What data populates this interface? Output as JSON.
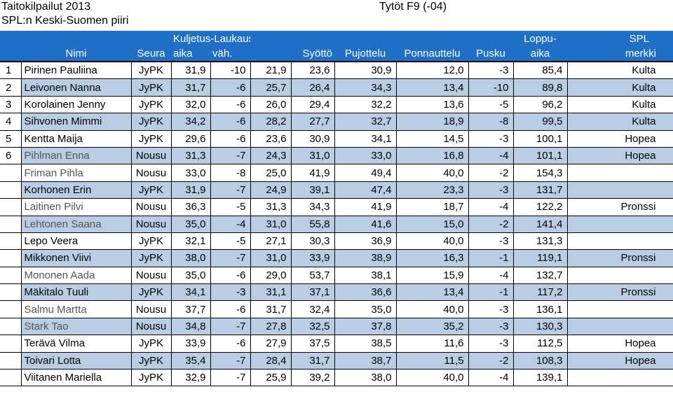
{
  "header": {
    "title": "Taitokilpailut 2013",
    "subtitle": "SPL:n Keski-Suomen piiri",
    "category": "Tytöt F9 (-04)"
  },
  "columns": {
    "group_kuljetus": "Kuljetus-Laukaus",
    "group_loppu": "Loppu-",
    "group_spl": "SPL",
    "nimi": "Nimi",
    "seura": "Seura",
    "aika": "aika",
    "vah": "väh.",
    "syotto": "Syöttö",
    "pujottelu": "Pujottelu",
    "ponnauttelu": "Ponnauttelu",
    "pusku": "Pusku",
    "loppu_aika": "aika",
    "merkki": "merkki"
  },
  "rows": [
    {
      "rank": "1",
      "name": "Pirinen Pauliina",
      "seura": "JyPK",
      "aika": "31,9",
      "vah": "-10",
      "kl": "21,9",
      "syotto": "23,6",
      "pujottelu": "30,9",
      "ponnauttelu": "12,0",
      "pusku": "-3",
      "loppuaika": "85,4",
      "merkki": "Kulta",
      "shaded": false
    },
    {
      "rank": "2",
      "name": "Leivonen Nanna",
      "seura": "JyPK",
      "aika": "31,7",
      "vah": "-6",
      "kl": "25,7",
      "syotto": "26,4",
      "pujottelu": "34,3",
      "ponnauttelu": "13,4",
      "pusku": "-10",
      "loppuaika": "89,8",
      "merkki": "Kulta",
      "shaded": true
    },
    {
      "rank": "3",
      "name": "Korolainen Jenny",
      "seura": "JyPK",
      "aika": "32,0",
      "vah": "-6",
      "kl": "26,0",
      "syotto": "29,4",
      "pujottelu": "32,2",
      "ponnauttelu": "13,6",
      "pusku": "-5",
      "loppuaika": "96,2",
      "merkki": "Kulta",
      "shaded": false
    },
    {
      "rank": "4",
      "name": "Sihvonen Mimmi",
      "seura": "JyPK",
      "aika": "34,2",
      "vah": "-6",
      "kl": "28,2",
      "syotto": "27,7",
      "pujottelu": "32,7",
      "ponnauttelu": "18,9",
      "pusku": "-8",
      "loppuaika": "99,5",
      "merkki": "Kulta",
      "shaded": true
    },
    {
      "rank": "5",
      "name": "Kentta Maija",
      "seura": "JyPK",
      "aika": "29,6",
      "vah": "-6",
      "kl": "23,6",
      "syotto": "30,9",
      "pujottelu": "34,1",
      "ponnauttelu": "14,5",
      "pusku": "-3",
      "loppuaika": "100,1",
      "merkki": "Hopea",
      "shaded": false
    },
    {
      "rank": "6",
      "name": "Pihlman Enna",
      "seura": "Nousu",
      "aika": "31,3",
      "vah": "-7",
      "kl": "24,3",
      "syotto": "31,0",
      "pujottelu": "33,0",
      "ponnauttelu": "16,8",
      "pusku": "-4",
      "loppuaika": "101,1",
      "merkki": "Hopea",
      "shaded": true,
      "gray": true
    },
    {
      "rank": "",
      "name": "Friman Pihla",
      "seura": "Nousu",
      "aika": "33,0",
      "vah": "-8",
      "kl": "25,0",
      "syotto": "41,9",
      "pujottelu": "49,4",
      "ponnauttelu": "40,0",
      "pusku": "-2",
      "loppuaika": "154,3",
      "merkki": "",
      "shaded": false,
      "gray": true
    },
    {
      "rank": "",
      "name": "Korhonen Erin",
      "seura": "JyPK",
      "aika": "31,9",
      "vah": "-7",
      "kl": "24,9",
      "syotto": "39,1",
      "pujottelu": "47,4",
      "ponnauttelu": "23,3",
      "pusku": "-3",
      "loppuaika": "131,7",
      "merkki": "",
      "shaded": true
    },
    {
      "rank": "",
      "name": "Laitinen Pilvi",
      "seura": "Nousu",
      "aika": "36,3",
      "vah": "-5",
      "kl": "31,3",
      "syotto": "34,3",
      "pujottelu": "41,9",
      "ponnauttelu": "18,7",
      "pusku": "-4",
      "loppuaika": "122,2",
      "merkki": "Pronssi",
      "shaded": false,
      "gray": true
    },
    {
      "rank": "",
      "name": "Lehtonen Saana",
      "seura": "Nousu",
      "aika": "35,0",
      "vah": "-4",
      "kl": "31,0",
      "syotto": "55,8",
      "pujottelu": "41,6",
      "ponnauttelu": "15,0",
      "pusku": "-2",
      "loppuaika": "141,4",
      "merkki": "",
      "shaded": true,
      "gray": true
    },
    {
      "rank": "",
      "name": "Lepo Veera",
      "seura": "JyPK",
      "aika": "32,1",
      "vah": "-5",
      "kl": "27,1",
      "syotto": "30,3",
      "pujottelu": "36,9",
      "ponnauttelu": "40,0",
      "pusku": "-3",
      "loppuaika": "131,3",
      "merkki": "",
      "shaded": false
    },
    {
      "rank": "",
      "name": "Mikkonen Viivi",
      "seura": "JyPK",
      "aika": "38,0",
      "vah": "-7",
      "kl": "31,0",
      "syotto": "33,9",
      "pujottelu": "38,9",
      "ponnauttelu": "16,3",
      "pusku": "-1",
      "loppuaika": "119,1",
      "merkki": "Pronssi",
      "shaded": true
    },
    {
      "rank": "",
      "name": "Mononen Aada",
      "seura": "Nousu",
      "aika": "35,0",
      "vah": "-6",
      "kl": "29,0",
      "syotto": "53,7",
      "pujottelu": "38,1",
      "ponnauttelu": "15,9",
      "pusku": "-4",
      "loppuaika": "132,7",
      "merkki": "",
      "shaded": false,
      "gray": true
    },
    {
      "rank": "",
      "name": "Mäkitalo Tuuli",
      "seura": "JyPK",
      "aika": "34,1",
      "vah": "-3",
      "kl": "31,1",
      "syotto": "37,1",
      "pujottelu": "36,6",
      "ponnauttelu": "13,4",
      "pusku": "-1",
      "loppuaika": "117,2",
      "merkki": "Pronssi",
      "shaded": true
    },
    {
      "rank": "",
      "name": "Salmu Martta",
      "seura": "Nousu",
      "aika": "37,7",
      "vah": "-6",
      "kl": "31,7",
      "syotto": "32,4",
      "pujottelu": "35,0",
      "ponnauttelu": "40,0",
      "pusku": "-3",
      "loppuaika": "136,1",
      "merkki": "",
      "shaded": false,
      "gray": true
    },
    {
      "rank": "",
      "name": "Stark Tao",
      "seura": "Nousu",
      "aika": "34,8",
      "vah": "-7",
      "kl": "27,8",
      "syotto": "32,5",
      "pujottelu": "37,8",
      "ponnauttelu": "35,2",
      "pusku": "-3",
      "loppuaika": "130,3",
      "merkki": "",
      "shaded": true,
      "gray": true
    },
    {
      "rank": "",
      "name": "Terävä Vilma",
      "seura": "JyPK",
      "aika": "33,9",
      "vah": "-6",
      "kl": "27,9",
      "syotto": "37,5",
      "pujottelu": "38,5",
      "ponnauttelu": "11,6",
      "pusku": "-3",
      "loppuaika": "112,5",
      "merkki": "Hopea",
      "shaded": false
    },
    {
      "rank": "",
      "name": "Toivari Lotta",
      "seura": "JyPK",
      "aika": "35,4",
      "vah": "-7",
      "kl": "28,4",
      "syotto": "31,7",
      "pujottelu": "38,7",
      "ponnauttelu": "11,5",
      "pusku": "-2",
      "loppuaika": "108,3",
      "merkki": "Hopea",
      "shaded": true
    },
    {
      "rank": "",
      "name": "Viitanen Mariella",
      "seura": "JyPK",
      "aika": "32,9",
      "vah": "-7",
      "kl": "25,9",
      "syotto": "39,2",
      "pujottelu": "38,0",
      "ponnauttelu": "40,0",
      "pusku": "-4",
      "loppuaika": "139,1",
      "merkki": "",
      "shaded": false
    }
  ]
}
